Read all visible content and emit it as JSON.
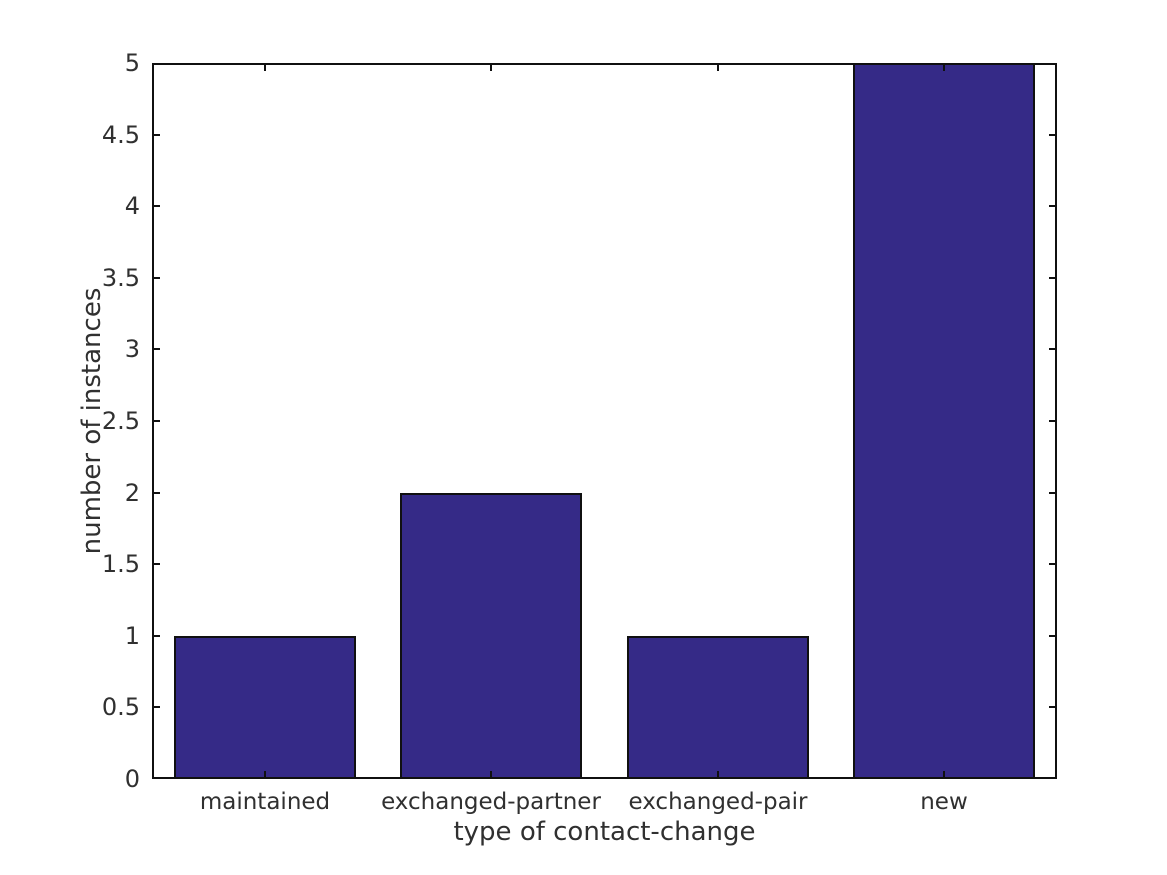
{
  "chart_data": {
    "type": "bar",
    "title": "",
    "categories": [
      "maintained",
      "exchanged-partner",
      "exchanged-pair",
      "new"
    ],
    "values": [
      1,
      2,
      1,
      5
    ],
    "xlabel": "type of contact-change",
    "ylabel": "number of instances",
    "ylim": [
      0,
      5
    ],
    "ytick_step": 0.5,
    "ytick_labels": [
      "0",
      "0.5",
      "1",
      "1.5",
      "2",
      "2.5",
      "3",
      "3.5",
      "4",
      "4.5",
      "5"
    ],
    "grid": false,
    "legend_position": "none",
    "bar_color": "#352a87",
    "bar_edge_color": "#101010",
    "axis_color": "#101010",
    "text_color": "#303030",
    "background_color": "#ffffff"
  }
}
